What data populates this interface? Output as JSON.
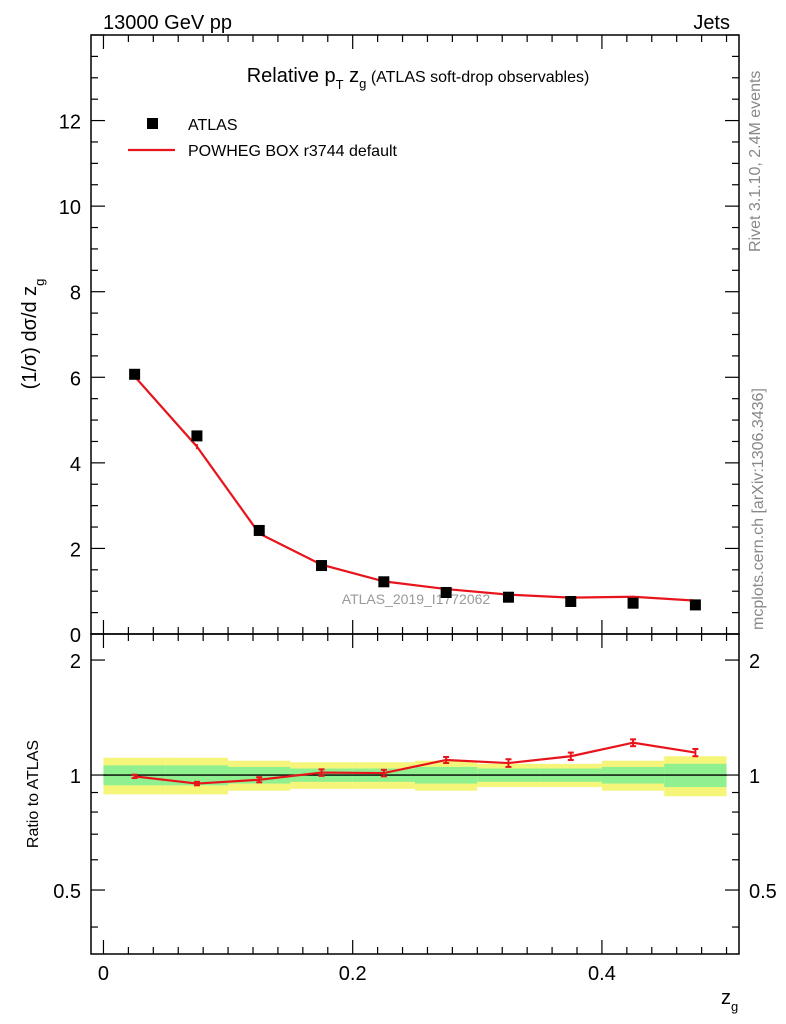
{
  "header": {
    "left_label": "13000 GeV pp",
    "right_label": "Jets"
  },
  "side_labels": {
    "rivet": "Rivet 3.1.10,  2.4M events",
    "mcplots": "mcplots.cern.ch [arXiv:1306.3436]"
  },
  "watermark": "ATLAS_2019_I1772062",
  "chart_data": [
    {
      "type": "scatter",
      "panel": "main",
      "title_main": "Relative p",
      "title_sub_T": "T",
      "title_z": " z",
      "title_sub_g": "g",
      "title_rest": " (ATLAS soft-drop observables)",
      "ylabel": "(1/σ) dσ/d z",
      "ylabel_sub": "g",
      "xlim": [
        -0.01,
        0.51
      ],
      "ylim": [
        0,
        14
      ],
      "y_major_ticks": [
        0,
        2,
        4,
        6,
        8,
        10,
        12
      ],
      "y_tick_labels": [
        "0",
        "2",
        "4",
        "6",
        "8",
        "10",
        "12"
      ],
      "legend": {
        "placement": "top-left",
        "entries": [
          "ATLAS",
          "POWHEG BOX r3744 default"
        ]
      },
      "series": [
        {
          "name": "ATLAS",
          "style": "markers",
          "color": "#000000",
          "x": [
            0.025,
            0.075,
            0.125,
            0.175,
            0.225,
            0.275,
            0.325,
            0.375,
            0.425,
            0.475
          ],
          "values": [
            6.07,
            4.63,
            2.42,
            1.6,
            1.22,
            0.97,
            0.86,
            0.76,
            0.72,
            0.68
          ]
        },
        {
          "name": "POWHEG BOX r3744 default",
          "style": "line",
          "color": "#e8141b",
          "x": [
            0.025,
            0.075,
            0.125,
            0.175,
            0.225,
            0.275,
            0.325,
            0.375,
            0.425,
            0.475
          ],
          "values": [
            6.02,
            4.38,
            2.35,
            1.62,
            1.23,
            1.05,
            0.92,
            0.85,
            0.87,
            0.78
          ],
          "errors": [
            0.05,
            0.06,
            0.04,
            0.03,
            0.02,
            0.02,
            0.02,
            0.02,
            0.02,
            0.02
          ]
        }
      ]
    },
    {
      "type": "line",
      "panel": "ratio",
      "ylabel": "Ratio to ATLAS",
      "xlabel": "z",
      "xlabel_sub": "g",
      "xlim": [
        -0.01,
        0.51
      ],
      "ylim": [
        0.34,
        2.34
      ],
      "x_major_ticks": [
        0,
        0.2,
        0.4
      ],
      "x_tick_labels": [
        "0",
        "0.2",
        "0.4"
      ],
      "y_major_ticks": [
        0.5,
        1,
        2
      ],
      "y_tick_labels": [
        "0.5",
        "1",
        "2"
      ],
      "bins": [
        0,
        0.05,
        0.1,
        0.15,
        0.2,
        0.25,
        0.3,
        0.35,
        0.4,
        0.45,
        0.5
      ],
      "band_yellow": [
        0.11,
        0.11,
        0.09,
        0.08,
        0.08,
        0.09,
        0.07,
        0.07,
        0.09,
        0.12
      ],
      "band_green": [
        0.06,
        0.06,
        0.05,
        0.04,
        0.04,
        0.05,
        0.04,
        0.04,
        0.05,
        0.07
      ],
      "band_colors": {
        "yellow": "#f5f57a",
        "green": "#8ff090"
      },
      "series": [
        {
          "name": "POWHEG BOX r3744 default",
          "color": "#e8141b",
          "x": [
            0.025,
            0.075,
            0.125,
            0.175,
            0.225,
            0.275,
            0.325,
            0.375,
            0.425,
            0.475
          ],
          "values": [
            0.992,
            0.95,
            0.972,
            1.015,
            1.012,
            1.095,
            1.075,
            1.12,
            1.215,
            1.145
          ],
          "errors": [
            0.01,
            0.01,
            0.015,
            0.02,
            0.02,
            0.02,
            0.025,
            0.025,
            0.025,
            0.025
          ]
        }
      ]
    }
  ]
}
